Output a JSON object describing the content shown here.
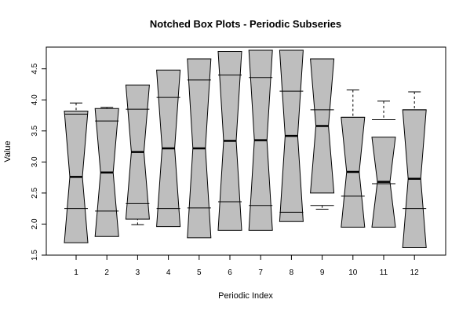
{
  "chart_data": {
    "type": "notched-boxplot",
    "title": "Notched Box Plots - Periodic Subseries",
    "xlabel": "Periodic Index",
    "ylabel": "Value",
    "ylim": [
      1.5,
      4.85
    ],
    "yticks": [
      1.5,
      2.0,
      2.5,
      3.0,
      3.5,
      4.0,
      4.5
    ],
    "ytick_labels": [
      "1.5",
      "2.0",
      "2.5",
      "3.0",
      "3.5",
      "4.0",
      "4.5"
    ],
    "box_fill": "#bebebe",
    "categories": [
      "1",
      "2",
      "3",
      "4",
      "5",
      "6",
      "7",
      "8",
      "9",
      "10",
      "11",
      "12"
    ],
    "boxes": [
      {
        "lower_whisker": 2.18,
        "q1": 2.25,
        "median": 2.76,
        "q3": 3.77,
        "upper_whisker": 3.95,
        "notch_low": 1.7,
        "notch_high": 3.82
      },
      {
        "lower_whisker": 2.06,
        "q1": 2.21,
        "median": 2.83,
        "q3": 3.66,
        "upper_whisker": 3.88,
        "notch_low": 1.8,
        "notch_high": 3.86
      },
      {
        "lower_whisker": 1.99,
        "q1": 2.33,
        "median": 3.16,
        "q3": 3.85,
        "upper_whisker": 4.03,
        "notch_low": 2.08,
        "notch_high": 4.24
      },
      {
        "lower_whisker": 2.12,
        "q1": 2.25,
        "median": 3.22,
        "q3": 4.04,
        "upper_whisker": 4.15,
        "notch_low": 1.96,
        "notch_high": 4.48
      },
      {
        "lower_whisker": 2.08,
        "q1": 2.26,
        "median": 3.22,
        "q3": 4.32,
        "upper_whisker": 4.32,
        "notch_low": 1.78,
        "notch_high": 4.66
      },
      {
        "lower_whisker": 1.97,
        "q1": 2.36,
        "median": 3.34,
        "q3": 4.4,
        "upper_whisker": 4.58,
        "notch_low": 1.9,
        "notch_high": 4.78
      },
      {
        "lower_whisker": 2.09,
        "q1": 2.3,
        "median": 3.35,
        "q3": 4.36,
        "upper_whisker": 4.46,
        "notch_low": 1.9,
        "notch_high": 4.8
      },
      {
        "lower_whisker": 2.12,
        "q1": 2.19,
        "median": 3.42,
        "q3": 4.14,
        "upper_whisker": 4.41,
        "notch_low": 2.04,
        "notch_high": 4.8
      },
      {
        "lower_whisker": 2.24,
        "q1": 2.3,
        "median": 3.58,
        "q3": 3.84,
        "upper_whisker": 4.11,
        "notch_low": 2.5,
        "notch_high": 4.66
      },
      {
        "lower_whisker": 2.21,
        "q1": 2.45,
        "median": 2.84,
        "q3": 3.72,
        "upper_whisker": 4.16,
        "notch_low": 1.95,
        "notch_high": 3.72
      },
      {
        "lower_whisker": 2.21,
        "q1": 2.65,
        "median": 2.68,
        "q3": 3.68,
        "upper_whisker": 3.98,
        "notch_low": 1.95,
        "notch_high": 3.4
      },
      {
        "lower_whisker": 2.17,
        "q1": 2.25,
        "median": 2.73,
        "q3": 3.84,
        "upper_whisker": 4.13,
        "notch_low": 1.62,
        "notch_high": 3.84
      }
    ]
  }
}
